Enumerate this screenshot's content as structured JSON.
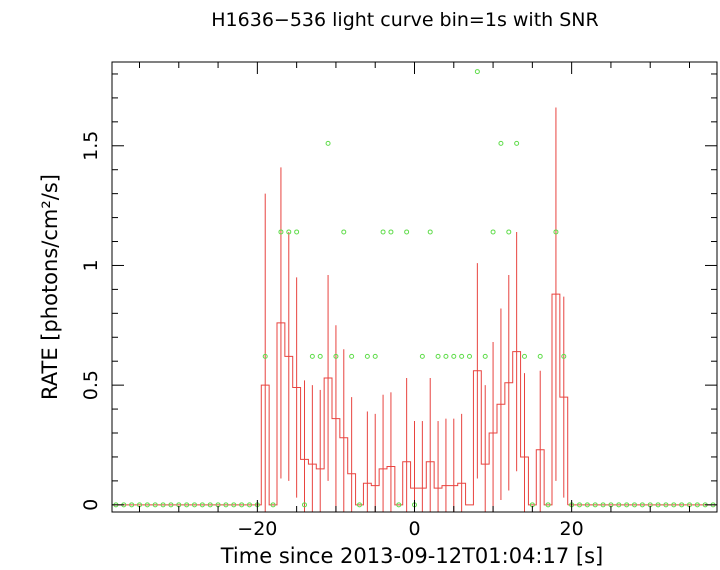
{
  "chart_data": {
    "type": "line",
    "title": "H1636−536 light curve bin=1s with SNR",
    "xlabel": "Time since 2013-09-12T01:04:17 [s]",
    "ylabel": "RATE [photons/cm²/s]",
    "xlim": [
      -38.5,
      38.5
    ],
    "ylim": [
      -0.03,
      1.85
    ],
    "x_ticks": [
      -20,
      0,
      20
    ],
    "x_tick_labels": [
      "−20",
      "0",
      "20"
    ],
    "y_ticks": [
      0,
      0.5,
      1,
      1.5
    ],
    "y_tick_labels": [
      "0",
      "0.5",
      "1",
      "1.5"
    ],
    "grid": false,
    "colors": {
      "rate": "#e8433f",
      "snr": "#5fdc4a",
      "axes": "#000000"
    },
    "bins_x": [
      -20,
      -19,
      -18,
      -17,
      -16,
      -15,
      -14,
      -13,
      -12,
      -11,
      -10,
      -9,
      -8,
      -7,
      -6,
      -5,
      -4,
      -3,
      -2,
      -1,
      0,
      1,
      2,
      3,
      4,
      5,
      6,
      7,
      8,
      9,
      10,
      11,
      12,
      13,
      14,
      15,
      16,
      17,
      18,
      19
    ],
    "rate": [
      0,
      0.5,
      0,
      0.76,
      0.62,
      0.49,
      0.19,
      0.17,
      0.15,
      0.53,
      0.36,
      0.28,
      0.13,
      0,
      0.09,
      0.08,
      0.15,
      0.16,
      0,
      0.18,
      0.07,
      0.07,
      0.18,
      0.07,
      0.08,
      0.08,
      0.09,
      0,
      0.56,
      0.17,
      0.3,
      0.42,
      0.51,
      0.64,
      0.2,
      0,
      0.23,
      0,
      0.88,
      0.45
    ],
    "rate_err": [
      0,
      0.8,
      0,
      0.65,
      0.52,
      0.46,
      0.33,
      0.33,
      0.33,
      0.43,
      0.39,
      0.37,
      0.32,
      0,
      0.3,
      0.3,
      0.31,
      0.31,
      0,
      0.35,
      0.28,
      0.28,
      0.35,
      0.28,
      0.28,
      0.28,
      0.29,
      0,
      0.45,
      0.33,
      0.38,
      0.4,
      0.45,
      0.5,
      0.35,
      0,
      0.33,
      0,
      0.78,
      0.42
    ],
    "snr_x": [
      -38,
      -37,
      -36,
      -35,
      -34,
      -33,
      -32,
      -31,
      -30,
      -29,
      -28,
      -27,
      -26,
      -25,
      -24,
      -23,
      -22,
      -21,
      -20,
      -19,
      -18,
      -17,
      -16,
      -15,
      -14,
      -13,
      -12,
      -11,
      -10,
      -9,
      -8,
      -7,
      -6,
      -5,
      -4,
      -3,
      -2,
      -1,
      0,
      1,
      2,
      3,
      4,
      5,
      6,
      7,
      8,
      9,
      10,
      11,
      12,
      13,
      14,
      15,
      16,
      17,
      18,
      19,
      20,
      21,
      22,
      23,
      24,
      25,
      26,
      27,
      28,
      29,
      30,
      31,
      32,
      33,
      34,
      35,
      36,
      37,
      38
    ],
    "snr": [
      0,
      0,
      0,
      0,
      0,
      0,
      0,
      0,
      0,
      0,
      0,
      0,
      0,
      0,
      0,
      0,
      0,
      0,
      0,
      0.62,
      0,
      1.14,
      1.14,
      1.14,
      0,
      0.62,
      0.62,
      1.51,
      0.62,
      1.14,
      0.62,
      0,
      0.62,
      0.62,
      1.14,
      1.14,
      0,
      1.14,
      0,
      0.62,
      1.14,
      0.62,
      0.62,
      0.62,
      0.62,
      0.62,
      1.81,
      0.62,
      1.14,
      1.51,
      1.14,
      1.51,
      0.62,
      0,
      0.62,
      0,
      1.14,
      0.62,
      0,
      0,
      0,
      0,
      0,
      0,
      0,
      0,
      0,
      0,
      0,
      0,
      0,
      0,
      0,
      0,
      0,
      0,
      0
    ]
  }
}
